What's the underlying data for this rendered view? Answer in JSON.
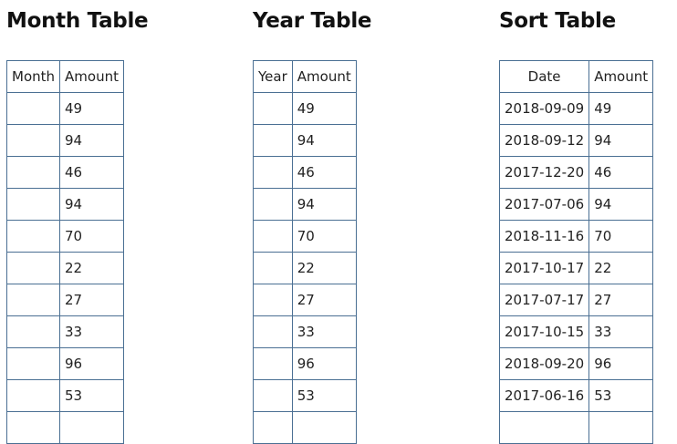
{
  "month_table": {
    "title": "Month Table",
    "headers": [
      "Month",
      "Amount"
    ],
    "rows": [
      [
        "",
        "49"
      ],
      [
        "",
        "94"
      ],
      [
        "",
        "46"
      ],
      [
        "",
        "94"
      ],
      [
        "",
        "70"
      ],
      [
        "",
        "22"
      ],
      [
        "",
        "27"
      ],
      [
        "",
        "33"
      ],
      [
        "",
        "96"
      ],
      [
        "",
        "53"
      ],
      [
        "",
        ""
      ]
    ]
  },
  "year_table": {
    "title": "Year Table",
    "headers": [
      "Year",
      "Amount"
    ],
    "rows": [
      [
        "",
        "49"
      ],
      [
        "",
        "94"
      ],
      [
        "",
        "46"
      ],
      [
        "",
        "94"
      ],
      [
        "",
        "70"
      ],
      [
        "",
        "22"
      ],
      [
        "",
        "27"
      ],
      [
        "",
        "33"
      ],
      [
        "",
        "96"
      ],
      [
        "",
        "53"
      ],
      [
        "",
        ""
      ]
    ]
  },
  "sort_table": {
    "title": "Sort Table",
    "headers": [
      "Date",
      "Amount"
    ],
    "rows": [
      [
        "2018-09-09",
        "49"
      ],
      [
        "2018-09-12",
        "94"
      ],
      [
        "2017-12-20",
        "46"
      ],
      [
        "2017-07-06",
        "94"
      ],
      [
        "2018-11-16",
        "70"
      ],
      [
        "2017-10-17",
        "22"
      ],
      [
        "2017-07-17",
        "27"
      ],
      [
        "2017-10-15",
        "33"
      ],
      [
        "2018-09-20",
        "96"
      ],
      [
        "2017-06-16",
        "53"
      ],
      [
        "",
        ""
      ]
    ]
  }
}
